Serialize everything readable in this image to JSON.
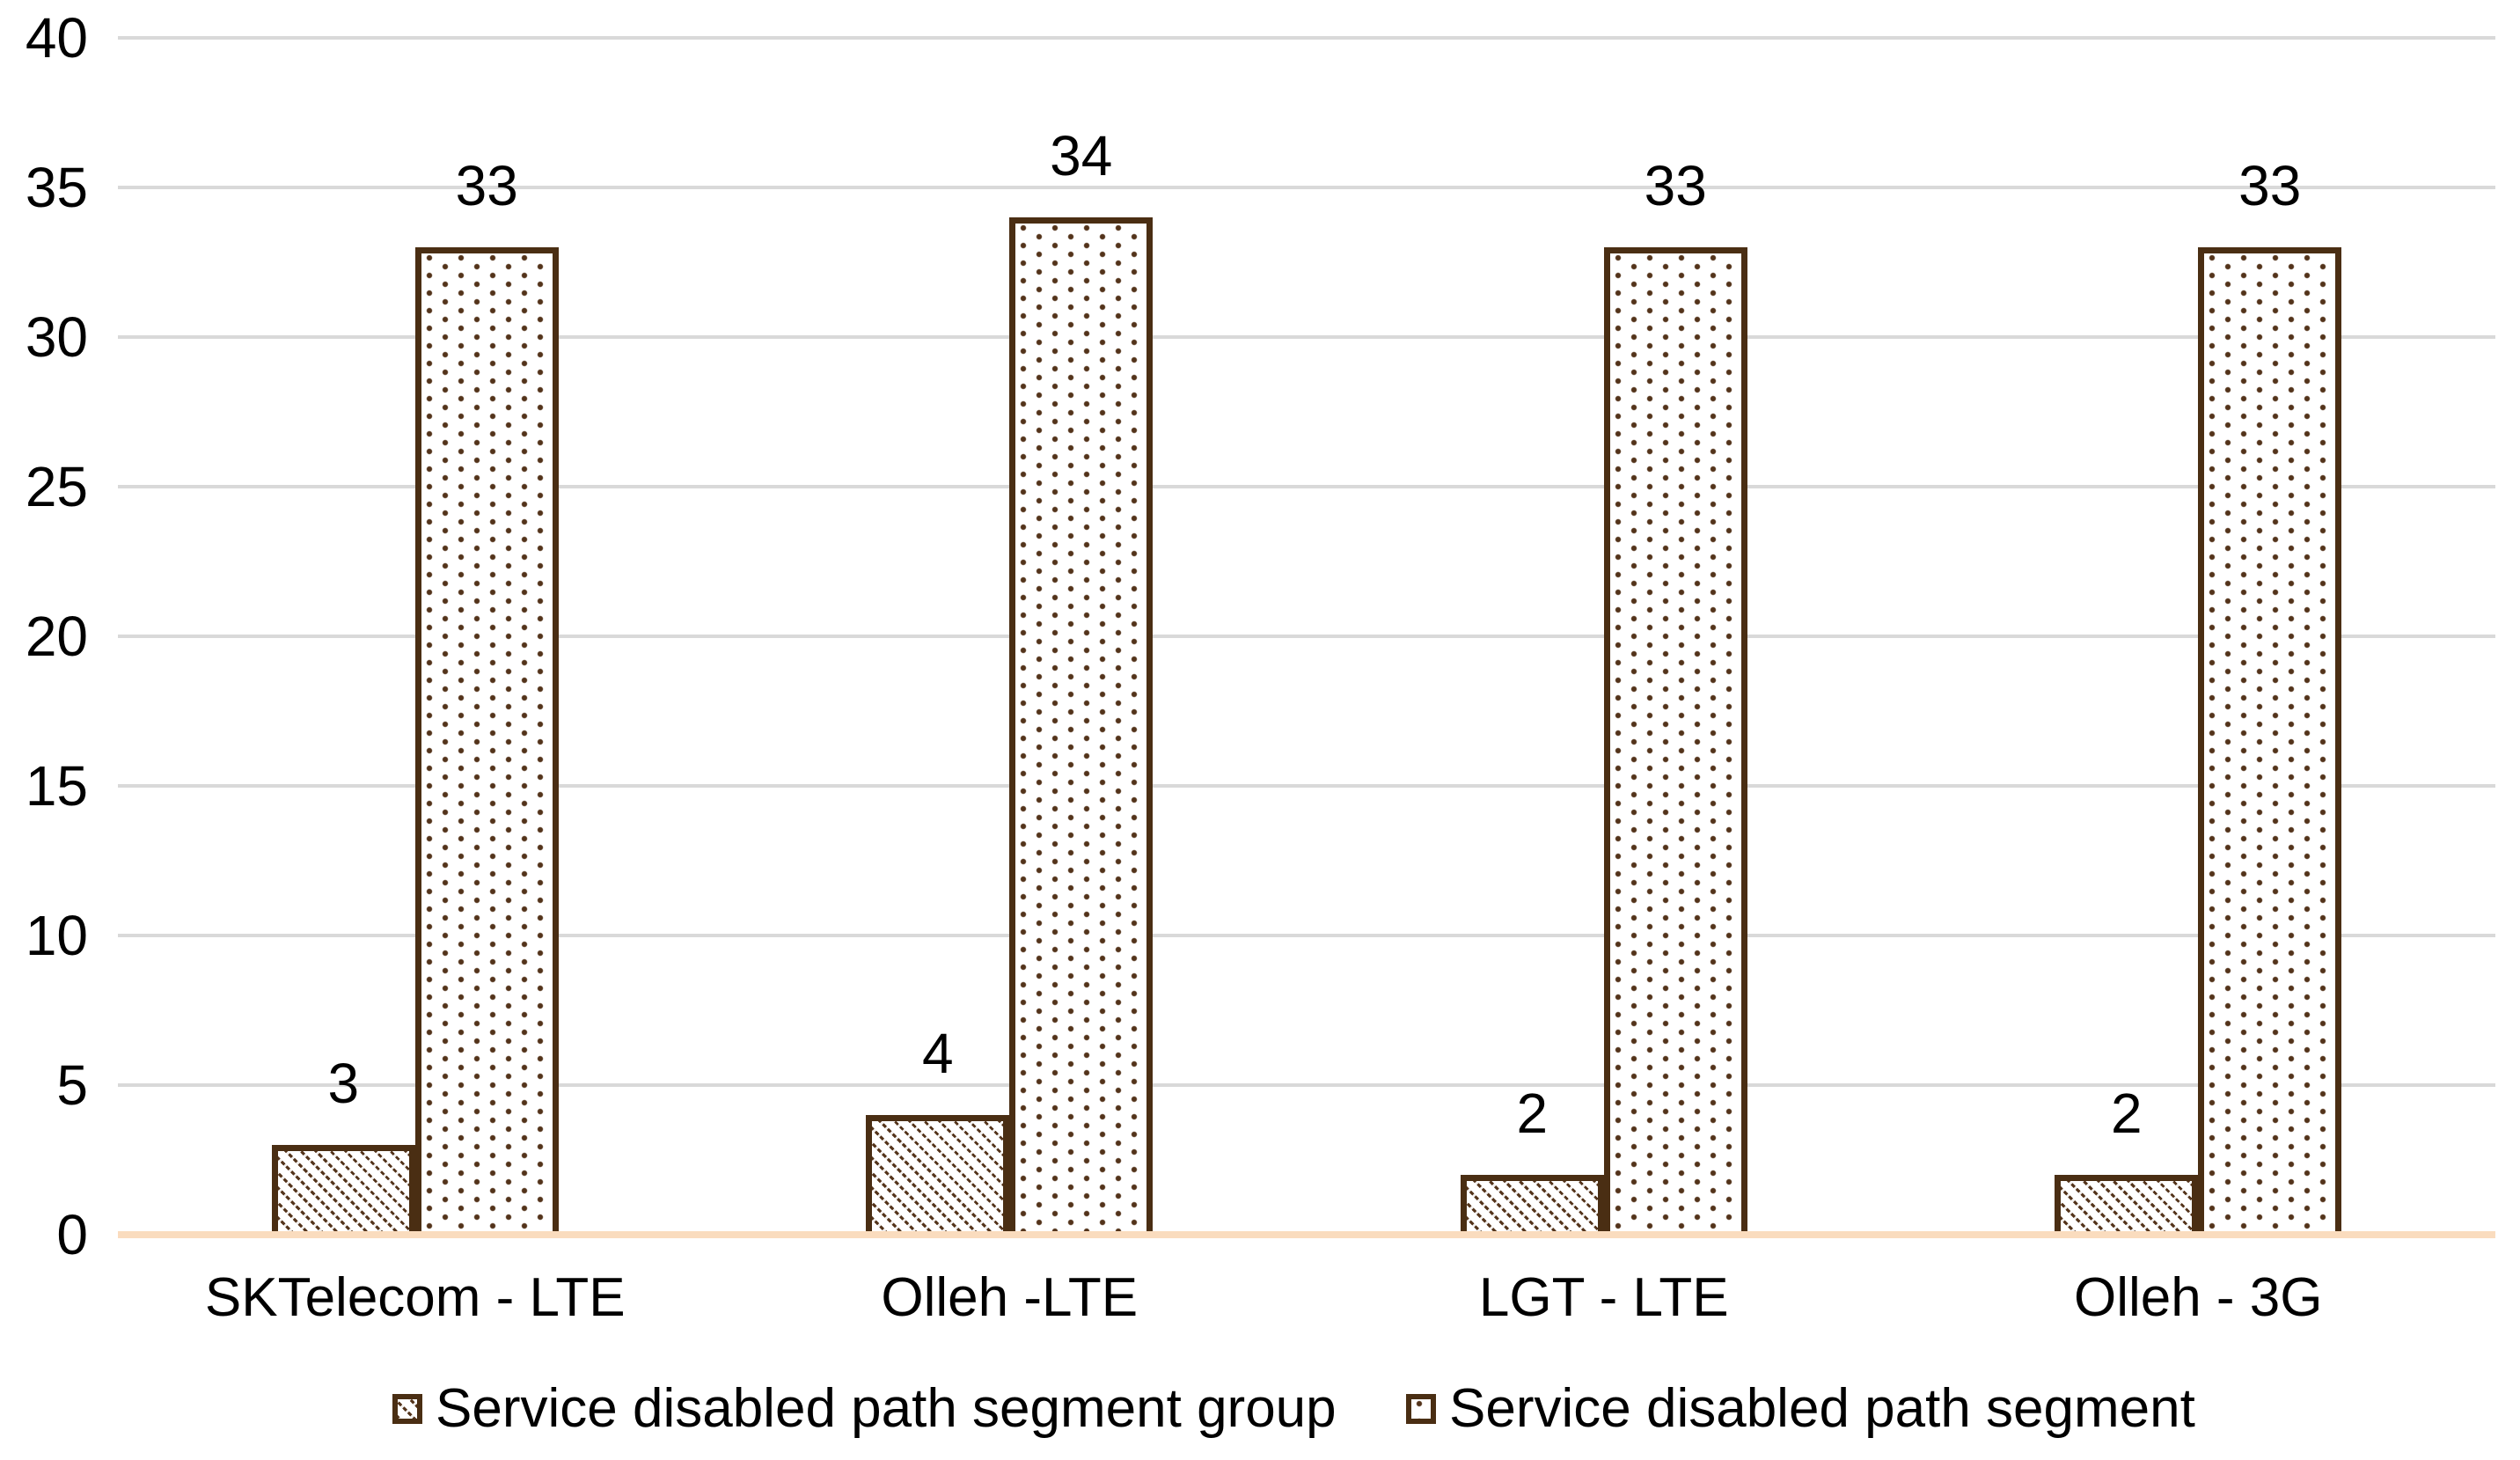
{
  "chart_data": {
    "type": "bar",
    "categories": [
      "SKTelecom - LTE",
      "Olleh -LTE",
      "LGT - LTE",
      "Olleh - 3G"
    ],
    "series": [
      {
        "name": "Service disabled path segment group",
        "pattern": "diagonal-hatch",
        "values": [
          3,
          4,
          2,
          2
        ]
      },
      {
        "name": "Service disabled path segment",
        "pattern": "dots",
        "values": [
          33,
          34,
          33,
          33
        ]
      }
    ],
    "data_labels": [
      [
        "3",
        "4",
        "2",
        "2"
      ],
      [
        "33",
        "34",
        "33",
        "33"
      ]
    ],
    "yticks": [
      "0",
      "5",
      "10",
      "15",
      "20",
      "25",
      "30",
      "35",
      "40"
    ],
    "ylim": [
      0,
      40
    ],
    "title": "",
    "xlabel": "",
    "ylabel": "",
    "grid": "horizontal",
    "legend_position": "bottom",
    "colors": {
      "bar_border": "#4a2e13",
      "pattern_mark": "#53331a",
      "gridline": "#d9d9d9",
      "axis_line": "#fadcbe",
      "text": "#000000",
      "background": "#ffffff"
    }
  }
}
